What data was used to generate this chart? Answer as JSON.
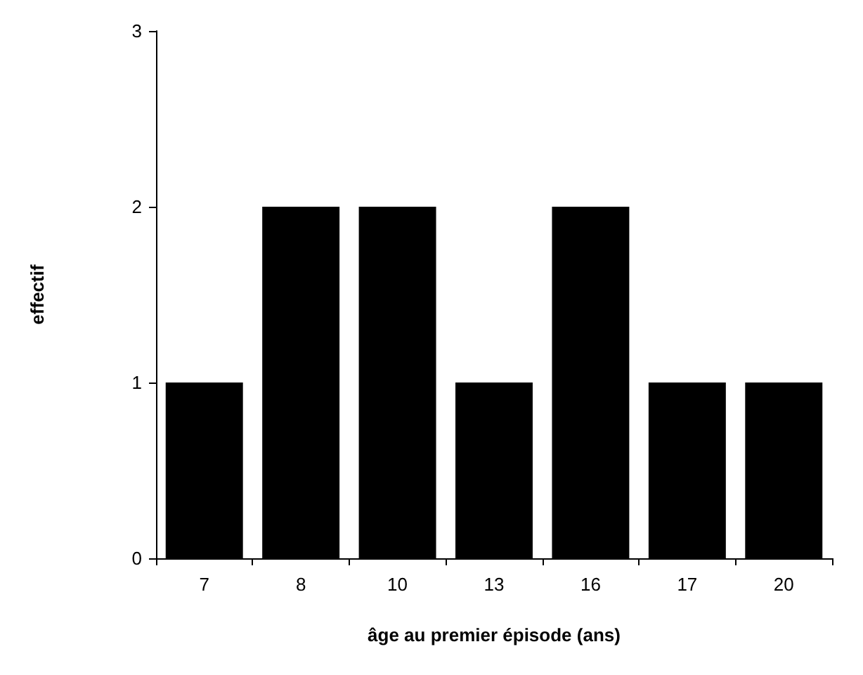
{
  "chart_data": {
    "type": "bar",
    "xlabel": "âge au premier épisode (ans)",
    "ylabel": "effectif",
    "categories": [
      "7",
      "8",
      "10",
      "13",
      "16",
      "17",
      "20"
    ],
    "values": [
      1,
      2,
      2,
      1,
      2,
      1,
      1
    ],
    "color": "#000000",
    "ylim": [
      0,
      3
    ],
    "yticks": [
      0,
      1,
      2,
      3
    ],
    "grid": false
  }
}
